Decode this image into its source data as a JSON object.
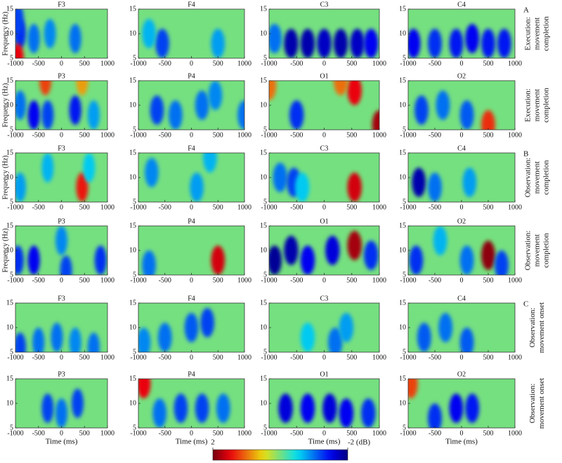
{
  "chart_data": {
    "type": "heatmap",
    "xlabel": "Time (ms)",
    "ylabel": "Frequency (Hz)",
    "xlim": [
      -1000,
      1000
    ],
    "ylim": [
      5,
      15
    ],
    "xticks": [
      -1000,
      -500,
      0,
      500,
      1000
    ],
    "yticks": [
      5,
      10,
      15
    ],
    "background": 0,
    "clim": [
      2,
      -2
    ],
    "colorbar_ticks": [
      2,
      {
        "value": -2,
        "label": "-2 (dB)"
      }
    ],
    "row_labels": [
      [
        "Execution:",
        "movement",
        "completion"
      ],
      [
        "Execution:",
        "movement",
        "completion"
      ],
      [
        "Observation:",
        "movement",
        "completion"
      ],
      [
        "Observation:",
        "movement",
        "completion"
      ],
      [
        "Observation:",
        "movement onset"
      ],
      [
        "Observation:",
        "movement onset"
      ]
    ],
    "section_letters": [
      "A",
      "B",
      "C"
    ],
    "panels": [
      {
        "title": "F3",
        "spots": [
          [
            -900,
            10,
            -1.3
          ],
          [
            -600,
            9,
            -1
          ],
          [
            -250,
            10,
            -0.9
          ],
          [
            300,
            9,
            -1
          ],
          [
            -950,
            13,
            -1.2
          ],
          [
            -950,
            5,
            1.5
          ]
        ]
      },
      {
        "title": "F4",
        "spots": [
          [
            -550,
            8,
            -1.2
          ],
          [
            -800,
            10,
            -0.7
          ],
          [
            500,
            8,
            -0.8
          ]
        ]
      },
      {
        "title": "C3",
        "spots": [
          [
            -600,
            8,
            -1.8
          ],
          [
            -300,
            8,
            -1.8
          ],
          [
            0,
            8,
            -1.7
          ],
          [
            300,
            8,
            -1.8
          ],
          [
            600,
            8,
            -1.7
          ],
          [
            850,
            8,
            -1.5
          ],
          [
            -900,
            9,
            -1
          ]
        ]
      },
      {
        "title": "C4",
        "spots": [
          [
            -900,
            8,
            -1.5
          ],
          [
            -500,
            8,
            -1.3
          ],
          [
            -100,
            8,
            -1.4
          ],
          [
            200,
            9,
            -1.5
          ],
          [
            500,
            8,
            -1.4
          ],
          [
            800,
            8,
            -1.4
          ]
        ]
      },
      {
        "title": "P3",
        "spots": [
          [
            -600,
            8,
            -1.5
          ],
          [
            -300,
            8,
            -1.2
          ],
          [
            300,
            9,
            -1.4
          ],
          [
            -900,
            10,
            -1
          ],
          [
            -350,
            15,
            1.2
          ],
          [
            450,
            15,
            0.8
          ],
          [
            700,
            8,
            -0.8
          ]
        ]
      },
      {
        "title": "P4",
        "spots": [
          [
            -650,
            9,
            -1.2
          ],
          [
            -300,
            8,
            -1
          ],
          [
            200,
            10,
            -1
          ],
          [
            450,
            12,
            -0.9
          ],
          [
            1000,
            8,
            -1
          ]
        ]
      },
      {
        "title": "O1",
        "spots": [
          [
            -500,
            8,
            -1.3
          ],
          [
            550,
            13,
            1.5
          ],
          [
            300,
            15,
            1
          ],
          [
            1000,
            6,
            1.8
          ],
          [
            -1000,
            14,
            1
          ]
        ]
      },
      {
        "title": "O2",
        "spots": [
          [
            -750,
            9,
            -1.2
          ],
          [
            -350,
            10,
            -1
          ],
          [
            100,
            8,
            -1.1
          ],
          [
            500,
            6,
            1.3
          ]
        ]
      },
      {
        "title": "F3",
        "spots": [
          [
            -900,
            8,
            -0.8
          ],
          [
            450,
            8,
            1.4
          ],
          [
            -300,
            12,
            -0.7
          ],
          [
            600,
            12,
            -0.6
          ]
        ]
      },
      {
        "title": "F4",
        "spots": [
          [
            -750,
            11,
            -0.9
          ],
          [
            100,
            8,
            -0.8
          ],
          [
            350,
            14,
            -0.7
          ]
        ]
      },
      {
        "title": "C3",
        "spots": [
          [
            -800,
            10,
            -1
          ],
          [
            -550,
            9,
            -1.2
          ],
          [
            550,
            8,
            1.6
          ],
          [
            -400,
            8,
            -0.6
          ]
        ]
      },
      {
        "title": "C4",
        "spots": [
          [
            -800,
            9,
            -1.8
          ],
          [
            -500,
            8,
            -1
          ],
          [
            150,
            9,
            -0.8
          ]
        ]
      },
      {
        "title": "P3",
        "spots": [
          [
            -950,
            8,
            -1.3
          ],
          [
            -600,
            8,
            -1.5
          ],
          [
            100,
            6,
            -1.2
          ],
          [
            850,
            8,
            -1.3
          ],
          [
            0,
            12,
            -0.9
          ]
        ]
      },
      {
        "title": "P4",
        "spots": [
          [
            -800,
            7,
            -1
          ],
          [
            500,
            8,
            1.6
          ]
        ]
      },
      {
        "title": "O1",
        "spots": [
          [
            -900,
            8,
            -1.9
          ],
          [
            -600,
            10,
            -1.8
          ],
          [
            -300,
            8,
            -1.5
          ],
          [
            150,
            10,
            -1.6
          ],
          [
            550,
            11,
            1.8
          ],
          [
            850,
            9,
            -1.3
          ]
        ]
      },
      {
        "title": "O2",
        "spots": [
          [
            -850,
            8,
            -1.3
          ],
          [
            100,
            8,
            -1
          ],
          [
            500,
            9,
            1.9
          ],
          [
            750,
            7,
            -1.2
          ],
          [
            -400,
            12,
            -0.7
          ]
        ]
      },
      {
        "title": "F3",
        "spots": [
          [
            -900,
            6,
            -1.2
          ],
          [
            -500,
            7,
            -1
          ],
          [
            -100,
            8,
            -1
          ],
          [
            300,
            7,
            -0.9
          ],
          [
            700,
            6,
            -1
          ]
        ]
      },
      {
        "title": "F4",
        "spots": [
          [
            -500,
            8,
            -1
          ],
          [
            0,
            10,
            -1.1
          ],
          [
            300,
            11,
            -1.2
          ],
          [
            -900,
            7,
            -0.9
          ]
        ]
      },
      {
        "title": "C3",
        "spots": [
          [
            200,
            7,
            -1
          ],
          [
            400,
            10,
            -0.8
          ],
          [
            -300,
            8,
            -0.6
          ]
        ]
      },
      {
        "title": "C4",
        "spots": [
          [
            -700,
            8,
            -1.1
          ],
          [
            -300,
            10,
            -1
          ],
          [
            100,
            7,
            -1.1
          ]
        ]
      },
      {
        "title": "P3",
        "spots": [
          [
            -300,
            9,
            -1.2
          ],
          [
            0,
            8,
            -1
          ],
          [
            350,
            10,
            -1.2
          ]
        ]
      },
      {
        "title": "P4",
        "spots": [
          [
            -900,
            14,
            1.5
          ],
          [
            -600,
            8,
            -1
          ],
          [
            -200,
            9,
            -1.2
          ],
          [
            200,
            9,
            -1.2
          ],
          [
            600,
            9,
            -1
          ]
        ]
      },
      {
        "title": "O1",
        "spots": [
          [
            -700,
            9,
            -1.6
          ],
          [
            -300,
            9,
            -1.5
          ],
          [
            100,
            9,
            -1.6
          ],
          [
            400,
            8,
            -1.5
          ],
          [
            800,
            8,
            -1.3
          ]
        ]
      },
      {
        "title": "O2",
        "spots": [
          [
            -500,
            7,
            -1.3
          ],
          [
            -100,
            9,
            -1.5
          ],
          [
            200,
            9,
            -1.4
          ],
          [
            -950,
            14,
            1.2
          ]
        ]
      }
    ]
  }
}
